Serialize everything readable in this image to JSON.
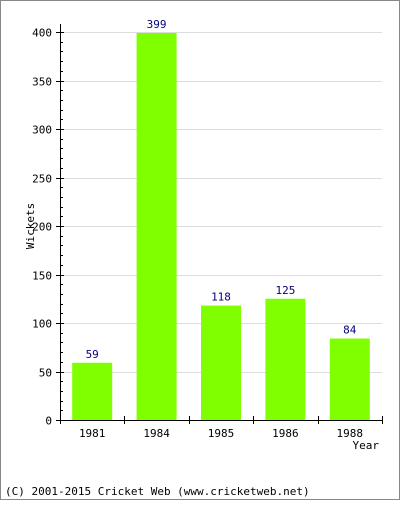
{
  "chart_data": {
    "type": "bar",
    "categories": [
      "1981",
      "1984",
      "1985",
      "1986",
      "1988"
    ],
    "values": [
      59,
      399,
      118,
      125,
      84
    ],
    "title": "",
    "xlabel": "Year",
    "ylabel": "Wickets",
    "ylim": [
      0,
      400
    ],
    "yticks": [
      0,
      50,
      100,
      150,
      200,
      250,
      300,
      350,
      400
    ],
    "grid": true,
    "legend": "none",
    "data_labels": true,
    "colors": {
      "bar": "#80ff00",
      "data_label": "#000080",
      "grid": "#dddddd",
      "axis": "#000000",
      "frame": "#888888"
    }
  },
  "footer": {
    "copyright": "(C) 2001-2015 Cricket Web (www.cricketweb.net)"
  }
}
